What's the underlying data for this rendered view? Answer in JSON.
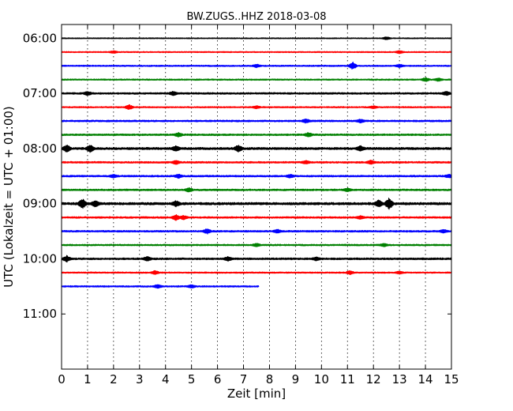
{
  "chart_data": {
    "type": "line",
    "title": "BW.ZUGS..HHZ 2018-03-08",
    "xlabel": "Zeit  [min]",
    "ylabel": "UTC (Lokalzeit = UTC + 01:00)",
    "xlim": [
      0,
      15
    ],
    "ylim_times": [
      "05:45",
      "12:00"
    ],
    "x_ticks": [
      "0",
      "1",
      "2",
      "3",
      "4",
      "5",
      "6",
      "7",
      "8",
      "9",
      "10",
      "11",
      "12",
      "13",
      "14",
      "15"
    ],
    "y_ticks": [
      "06:00",
      "07:00",
      "08:00",
      "09:00",
      "10:00",
      "11:00"
    ],
    "grid": "vertical dotted",
    "colors": [
      "#000000",
      "#ff0000",
      "#0000ff",
      "#008000"
    ],
    "trace_interval_min": 15,
    "series": [
      {
        "start": "06:00",
        "color": "#000000",
        "end_min": 15,
        "amplitude": 0.6,
        "bursts": [
          [
            12.5,
            1.5
          ]
        ]
      },
      {
        "start": "06:15",
        "color": "#ff0000",
        "end_min": 15,
        "amplitude": 0.7,
        "bursts": [
          [
            2.0,
            1.2
          ],
          [
            13.0,
            1.5
          ]
        ]
      },
      {
        "start": "06:30",
        "color": "#0000ff",
        "end_min": 15,
        "amplitude": 0.8,
        "bursts": [
          [
            7.5,
            1.5
          ],
          [
            11.2,
            4.0
          ],
          [
            13.0,
            1.5
          ]
        ]
      },
      {
        "start": "06:45",
        "color": "#008000",
        "end_min": 15,
        "amplitude": 0.8,
        "bursts": [
          [
            14.0,
            2.0
          ],
          [
            14.5,
            1.5
          ]
        ]
      },
      {
        "start": "07:00",
        "color": "#000000",
        "end_min": 15,
        "amplitude": 1.0,
        "bursts": [
          [
            1.0,
            2.0
          ],
          [
            4.3,
            2.0
          ],
          [
            14.8,
            2.0
          ]
        ]
      },
      {
        "start": "07:15",
        "color": "#ff0000",
        "end_min": 15,
        "amplitude": 0.8,
        "bursts": [
          [
            2.6,
            2.5
          ],
          [
            7.5,
            1.2
          ],
          [
            12.0,
            1.3
          ]
        ]
      },
      {
        "start": "07:30",
        "color": "#0000ff",
        "end_min": 15,
        "amplitude": 1.0,
        "bursts": [
          [
            9.4,
            2.0
          ],
          [
            11.5,
            1.5
          ]
        ]
      },
      {
        "start": "07:45",
        "color": "#008000",
        "end_min": 15,
        "amplitude": 1.0,
        "bursts": [
          [
            4.5,
            2.0
          ],
          [
            9.5,
            2.0
          ]
        ]
      },
      {
        "start": "08:00",
        "color": "#000000",
        "end_min": 15,
        "amplitude": 1.3,
        "bursts": [
          [
            0.2,
            3.5
          ],
          [
            1.1,
            3.5
          ],
          [
            4.4,
            2.5
          ],
          [
            6.8,
            3.5
          ],
          [
            11.5,
            2.5
          ]
        ]
      },
      {
        "start": "08:15",
        "color": "#ff0000",
        "end_min": 15,
        "amplitude": 1.0,
        "bursts": [
          [
            4.4,
            1.8
          ],
          [
            9.4,
            1.5
          ],
          [
            11.9,
            1.8
          ]
        ]
      },
      {
        "start": "08:30",
        "color": "#0000ff",
        "end_min": 15,
        "amplitude": 1.0,
        "bursts": [
          [
            2.0,
            1.5
          ],
          [
            4.5,
            1.8
          ],
          [
            8.8,
            1.5
          ],
          [
            14.9,
            1.5
          ]
        ]
      },
      {
        "start": "08:45",
        "color": "#008000",
        "end_min": 15,
        "amplitude": 1.0,
        "bursts": [
          [
            4.9,
            2.0
          ],
          [
            11.0,
            1.5
          ]
        ]
      },
      {
        "start": "09:00",
        "color": "#000000",
        "end_min": 15,
        "amplitude": 1.4,
        "bursts": [
          [
            0.8,
            5.0
          ],
          [
            1.3,
            3.0
          ],
          [
            4.4,
            2.5
          ],
          [
            12.2,
            3.5
          ],
          [
            12.6,
            6.0
          ]
        ]
      },
      {
        "start": "09:15",
        "color": "#ff0000",
        "end_min": 15,
        "amplitude": 1.0,
        "bursts": [
          [
            4.4,
            3.0
          ],
          [
            4.7,
            2.0
          ],
          [
            11.5,
            1.5
          ]
        ]
      },
      {
        "start": "09:30",
        "color": "#0000ff",
        "end_min": 15,
        "amplitude": 1.0,
        "bursts": [
          [
            5.6,
            2.5
          ],
          [
            8.3,
            1.8
          ],
          [
            14.7,
            1.5
          ]
        ]
      },
      {
        "start": "09:45",
        "color": "#008000",
        "end_min": 15,
        "amplitude": 0.9,
        "bursts": [
          [
            7.5,
            1.5
          ],
          [
            12.4,
            1.5
          ]
        ]
      },
      {
        "start": "10:00",
        "color": "#000000",
        "end_min": 15,
        "amplitude": 1.1,
        "bursts": [
          [
            0.2,
            3.0
          ],
          [
            3.3,
            2.0
          ],
          [
            6.4,
            2.0
          ],
          [
            9.8,
            1.5
          ]
        ]
      },
      {
        "start": "10:15",
        "color": "#ff0000",
        "end_min": 15,
        "amplitude": 0.8,
        "bursts": [
          [
            3.6,
            2.0
          ],
          [
            11.1,
            1.8
          ],
          [
            13.0,
            1.3
          ]
        ]
      },
      {
        "start": "10:30",
        "color": "#0000ff",
        "end_min": 7.6,
        "amplitude": 0.9,
        "bursts": [
          [
            3.7,
            1.8
          ],
          [
            5.0,
            1.5
          ]
        ]
      }
    ]
  }
}
